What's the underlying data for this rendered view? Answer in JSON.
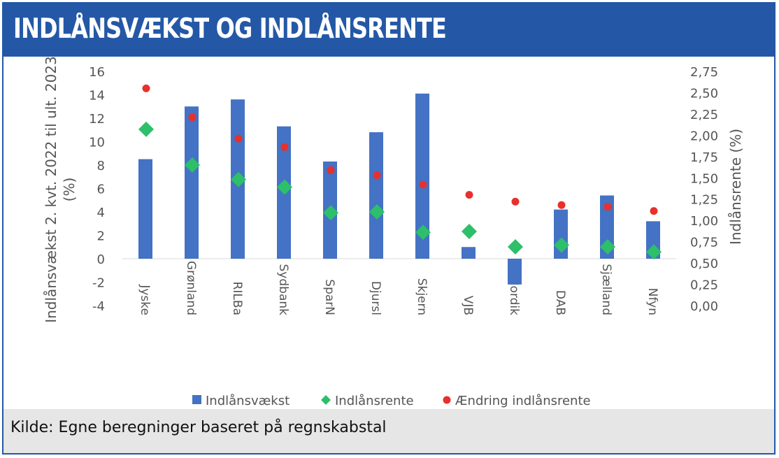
{
  "title": "INDLÅNSVÆKST OG INDLÅNSRENTE",
  "source": "Kilde: Egne beregninger baseret på regnskabstal",
  "colors": {
    "header": "#2458a6",
    "bars": "#4472c4",
    "diamond": "#2dbf6a",
    "dot": "#e8302c",
    "footer": "#e6e6e6"
  },
  "chart_data": {
    "type": "bar",
    "categories": [
      "Jyske",
      "Grønland",
      "RILBa",
      "Sydbank",
      "SparN",
      "Djursl",
      "Skjern",
      "VJB",
      "Nordik",
      "DAB",
      "Sjælland",
      "Nfyn"
    ],
    "series": [
      {
        "name": "Indlånsvækst",
        "type": "bar",
        "axis": "left",
        "values": [
          8.5,
          13.0,
          13.6,
          11.3,
          8.3,
          10.8,
          14.1,
          1.0,
          -2.2,
          4.2,
          5.4,
          3.2
        ]
      },
      {
        "name": "Indlånsrente",
        "type": "scatter",
        "marker": "diamond",
        "axis": "right",
        "values": [
          2.07,
          1.65,
          1.48,
          1.39,
          1.09,
          1.1,
          0.86,
          0.87,
          0.69,
          0.71,
          0.69,
          0.63
        ]
      },
      {
        "name": "Ændring indlånsrente",
        "type": "scatter",
        "marker": "circle",
        "axis": "right",
        "values": [
          2.55,
          2.21,
          1.96,
          1.86,
          1.59,
          1.53,
          1.42,
          1.3,
          1.22,
          1.18,
          1.16,
          1.11
        ]
      }
    ],
    "ylabel_left": "Indlånsvækst 2. kvt. 2022 til ult. 2023 (%)",
    "ylabel_right": "Indlånsrente (%)",
    "ylim_left": [
      -4,
      16
    ],
    "ylim_right": [
      0,
      2.75
    ],
    "yticks_left": [
      "16",
      "14",
      "12",
      "10",
      "8",
      "6",
      "4",
      "2",
      "0",
      "-2",
      "-4"
    ],
    "yticks_right": [
      "2,75",
      "2,50",
      "2,25",
      "2,00",
      "1,75",
      "1,50",
      "1,25",
      "1,00",
      "0,75",
      "0,50",
      "0,25",
      "0,00"
    ],
    "legend": [
      "Indlånsvækst",
      "Indlånsrente",
      "Ændring indlånsrente"
    ],
    "legend_position": "bottom",
    "grid": false
  }
}
